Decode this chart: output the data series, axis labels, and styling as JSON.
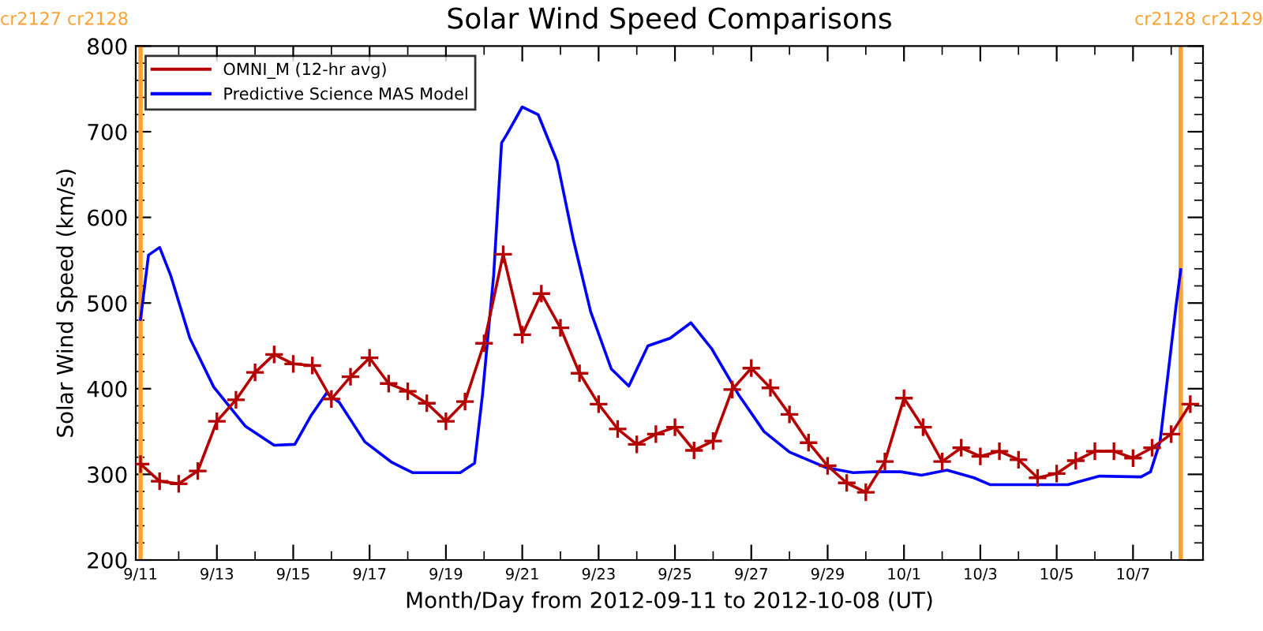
{
  "chart_data": {
    "type": "line",
    "title": "Solar Wind Speed Comparisons",
    "xlabel": "Month/Day from 2012-09-11 to 2012-10-08 (UT)",
    "ylabel": "Solar Wind Speed (km/s)",
    "xlim": [
      "2012-09-10T21:00",
      "2012-10-08T20:00"
    ],
    "xticks": [
      {
        "value": "2012-09-11",
        "label": "9/11"
      },
      {
        "value": "2012-09-13",
        "label": "9/13"
      },
      {
        "value": "2012-09-15",
        "label": "9/15"
      },
      {
        "value": "2012-09-17",
        "label": "9/17"
      },
      {
        "value": "2012-09-19",
        "label": "9/19"
      },
      {
        "value": "2012-09-21",
        "label": "9/21"
      },
      {
        "value": "2012-09-23",
        "label": "9/23"
      },
      {
        "value": "2012-09-25",
        "label": "9/25"
      },
      {
        "value": "2012-09-27",
        "label": "9/27"
      },
      {
        "value": "2012-09-29",
        "label": "9/29"
      },
      {
        "value": "2012-10-01",
        "label": "10/1"
      },
      {
        "value": "2012-10-03",
        "label": "10/3"
      },
      {
        "value": "2012-10-05",
        "label": "10/5"
      },
      {
        "value": "2012-10-07",
        "label": "10/7"
      }
    ],
    "ylim": [
      200,
      800
    ],
    "yticks": [
      200,
      300,
      400,
      500,
      600,
      700,
      800
    ],
    "grid": false,
    "legend": "top left",
    "ref_lines": [
      {
        "axis": "x",
        "value": "2012-09-11T00:00",
        "label": "cr2127 cr2128",
        "color": "#ffa030"
      },
      {
        "axis": "x",
        "value": "2012-10-08T06:00",
        "label": "cr2128 cr2129",
        "color": "#ffa030"
      }
    ],
    "series": [
      {
        "name": "OMNI_M (12-hr avg)",
        "color": "#b40000",
        "marker": "cross",
        "x": [
          "2012-09-11T00:00",
          "2012-09-11T12:00",
          "2012-09-12T00:00",
          "2012-09-12T12:00",
          "2012-09-13T00:00",
          "2012-09-13T12:00",
          "2012-09-14T00:00",
          "2012-09-14T12:00",
          "2012-09-15T00:00",
          "2012-09-15T12:00",
          "2012-09-16T00:00",
          "2012-09-16T12:00",
          "2012-09-17T00:00",
          "2012-09-17T12:00",
          "2012-09-18T00:00",
          "2012-09-18T12:00",
          "2012-09-19T00:00",
          "2012-09-19T12:00",
          "2012-09-20T00:00",
          "2012-09-20T12:00",
          "2012-09-21T00:00",
          "2012-09-21T12:00",
          "2012-09-22T00:00",
          "2012-09-22T12:00",
          "2012-09-23T00:00",
          "2012-09-23T12:00",
          "2012-09-24T00:00",
          "2012-09-24T12:00",
          "2012-09-25T00:00",
          "2012-09-25T12:00",
          "2012-09-26T00:00",
          "2012-09-26T12:00",
          "2012-09-27T00:00",
          "2012-09-27T12:00",
          "2012-09-28T00:00",
          "2012-09-28T12:00",
          "2012-09-29T00:00",
          "2012-09-29T12:00",
          "2012-09-30T00:00",
          "2012-09-30T12:00",
          "2012-10-01T00:00",
          "2012-10-01T12:00",
          "2012-10-02T00:00",
          "2012-10-02T12:00",
          "2012-10-03T00:00",
          "2012-10-03T12:00",
          "2012-10-04T00:00",
          "2012-10-04T12:00",
          "2012-10-05T00:00",
          "2012-10-05T12:00",
          "2012-10-06T00:00",
          "2012-10-06T12:00",
          "2012-10-07T00:00",
          "2012-10-07T12:00",
          "2012-10-08T00:00",
          "2012-10-08T12:00"
        ],
        "values": [
          312,
          292,
          289,
          304,
          362,
          387,
          419,
          440,
          429,
          427,
          388,
          414,
          436,
          406,
          397,
          383,
          362,
          385,
          453,
          557,
          463,
          511,
          471,
          418,
          382,
          353,
          335,
          347,
          355,
          328,
          339,
          399,
          424,
          401,
          370,
          337,
          310,
          290,
          279,
          315,
          389,
          355,
          315,
          331,
          321,
          327,
          317,
          296,
          301,
          316,
          327,
          327,
          319,
          331,
          347,
          382
        ]
      },
      {
        "name": "Predictive Science MAS Model",
        "color": "#0000ff",
        "marker": "none",
        "x": [
          "2012-09-11T00:00",
          "2012-09-11T05:00",
          "2012-09-11T12:00",
          "2012-09-11T19:00",
          "2012-09-12T07:00",
          "2012-09-12T22:00",
          "2012-09-13T18:00",
          "2012-09-14T12:00",
          "2012-09-15T01:00",
          "2012-09-15T11:00",
          "2012-09-15T21:00",
          "2012-09-16T05:00",
          "2012-09-16T21:00",
          "2012-09-17T14:00",
          "2012-09-18T03:00",
          "2012-09-19T09:00",
          "2012-09-19T18:00",
          "2012-09-19T23:00",
          "2012-09-20T06:00",
          "2012-09-20T11:00",
          "2012-09-20T14:00",
          "2012-09-21T00:00",
          "2012-09-21T10:00",
          "2012-09-21T22:00",
          "2012-09-22T08:00",
          "2012-09-22T19:00",
          "2012-09-23T08:00",
          "2012-09-23T19:00",
          "2012-09-24T07:00",
          "2012-09-24T21:00",
          "2012-09-25T10:00",
          "2012-09-25T23:00",
          "2012-09-26T16:00",
          "2012-09-27T08:00",
          "2012-09-28T00:00",
          "2012-09-28T23:00",
          "2012-09-29T16:00",
          "2012-09-30T05:00",
          "2012-09-30T22:00",
          "2012-10-01T11:00",
          "2012-10-02T03:00",
          "2012-10-02T20:00",
          "2012-10-03T06:00",
          "2012-10-05T07:00",
          "2012-10-06T03:00",
          "2012-10-07T05:00",
          "2012-10-07T11:00",
          "2012-10-07T17:00",
          "2012-10-07T22:00",
          "2012-10-08T03:00",
          "2012-10-08T06:00"
        ],
        "values": [
          481,
          556,
          565,
          532,
          459,
          402,
          356,
          334,
          335,
          368,
          395,
          384,
          338,
          314,
          302,
          302,
          313,
          393,
          532,
          687,
          696,
          729,
          720,
          665,
          575,
          490,
          423,
          403,
          450,
          459,
          477,
          447,
          393,
          350,
          326,
          308,
          302,
          303,
          303,
          299,
          305,
          296,
          288,
          288,
          298,
          297,
          303,
          338,
          417,
          496,
          539
        ]
      }
    ]
  }
}
